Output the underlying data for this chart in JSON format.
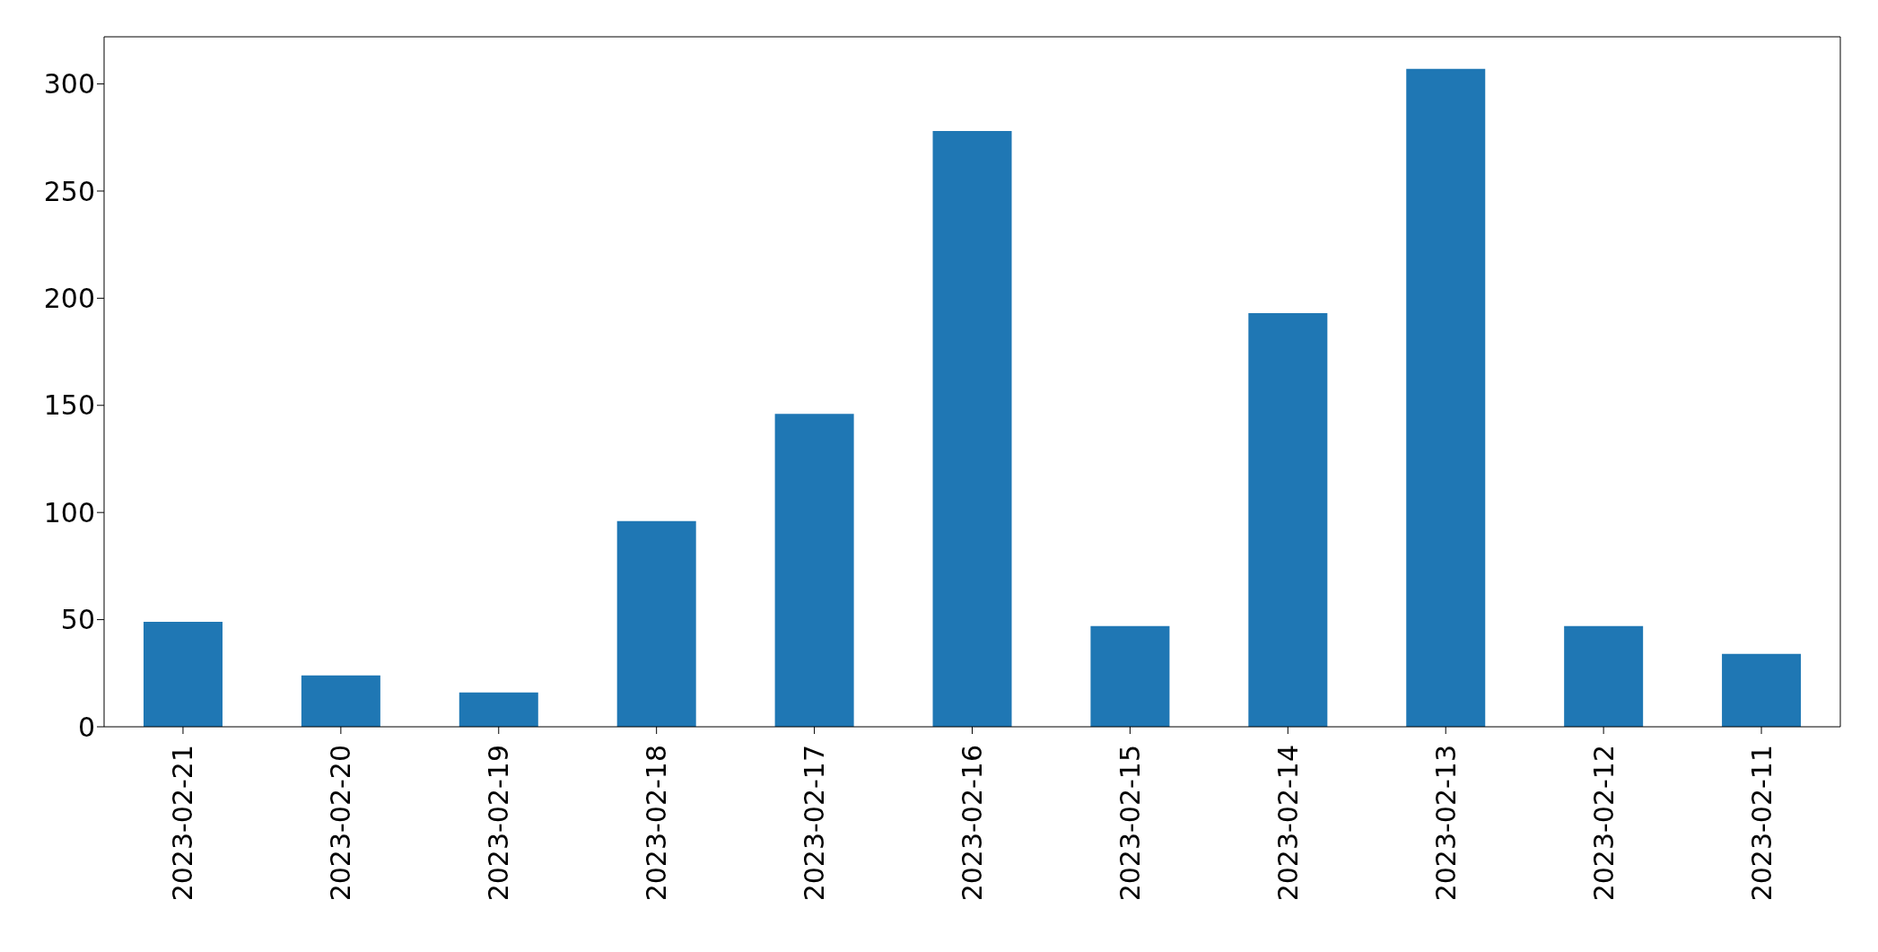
{
  "chart_data": {
    "type": "bar",
    "categories": [
      "2023-02-21",
      "2023-02-20",
      "2023-02-19",
      "2023-02-18",
      "2023-02-17",
      "2023-02-16",
      "2023-02-15",
      "2023-02-14",
      "2023-02-13",
      "2023-02-12",
      "2023-02-11"
    ],
    "values": [
      49,
      24,
      16,
      96,
      146,
      278,
      47,
      193,
      307,
      47,
      34
    ],
    "color": "#1f77b4",
    "ylim": [
      0,
      322
    ],
    "yticks": [
      0,
      50,
      100,
      150,
      200,
      250,
      300
    ],
    "grid": false,
    "legend": false
  }
}
